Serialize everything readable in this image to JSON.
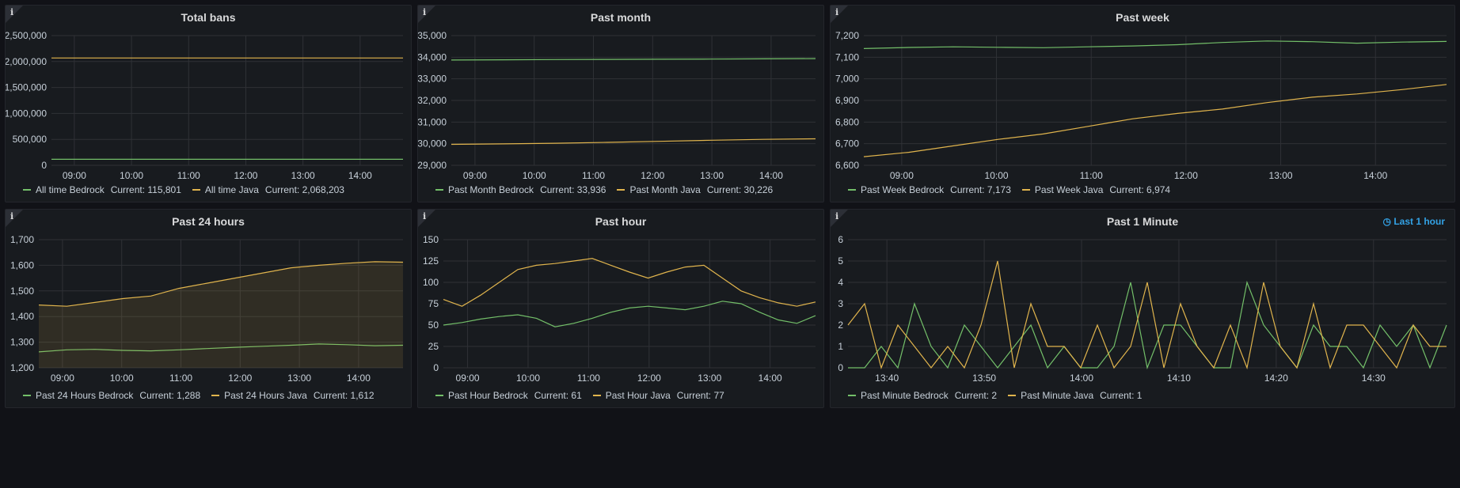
{
  "colors": {
    "green": "#73bf69",
    "yellow": "#fade2a",
    "orange": "#f2cc0c",
    "java": "#e0b44d",
    "bedrock": "#73bf69",
    "link": "#33a2e5"
  },
  "panels": [
    {
      "id": "total-bans",
      "title": "Total bans",
      "timeshift": "",
      "chart_data": {
        "type": "line",
        "x_ticks": [
          "09:00",
          "10:00",
          "11:00",
          "12:00",
          "13:00",
          "14:00"
        ],
        "y_ticks": [
          "0",
          "500,000",
          "1,000,000",
          "1,500,000",
          "2,000,000",
          "2,500,000"
        ],
        "ylim": [
          0,
          2500000
        ],
        "series": [
          {
            "name": "All time Bedrock",
            "color": "#73bf69",
            "values": [
              115801,
              115801,
              115801,
              115801,
              115801,
              115801,
              115801
            ]
          },
          {
            "name": "All time Java",
            "color": "#e0b44d",
            "values": [
              2068203,
              2068203,
              2068203,
              2068203,
              2068203,
              2068203,
              2068203
            ]
          }
        ]
      },
      "legend": [
        {
          "name": "All time Bedrock",
          "current": "Current: 115,801"
        },
        {
          "name": "All time Java",
          "current": "Current: 2,068,203"
        }
      ]
    },
    {
      "id": "past-month",
      "title": "Past month",
      "timeshift": "",
      "chart_data": {
        "type": "line",
        "x_ticks": [
          "09:00",
          "10:00",
          "11:00",
          "12:00",
          "13:00",
          "14:00"
        ],
        "y_ticks": [
          "29,000",
          "30,000",
          "31,000",
          "32,000",
          "33,000",
          "34,000",
          "35,000"
        ],
        "ylim": [
          29000,
          35000
        ],
        "series": [
          {
            "name": "Past Month Bedrock",
            "color": "#73bf69",
            "values": [
              33870,
              33880,
              33890,
              33900,
              33905,
              33915,
              33925,
              33936
            ]
          },
          {
            "name": "Past Month Java",
            "color": "#e0b44d",
            "values": [
              29970,
              29990,
              30020,
              30060,
              30110,
              30160,
              30200,
              30226
            ]
          }
        ]
      },
      "legend": [
        {
          "name": "Past Month Bedrock",
          "current": "Current: 33,936"
        },
        {
          "name": "Past Month Java",
          "current": "Current: 30,226"
        }
      ]
    },
    {
      "id": "past-week",
      "title": "Past week",
      "timeshift": "",
      "chart_data": {
        "type": "line",
        "x_ticks": [
          "09:00",
          "10:00",
          "11:00",
          "12:00",
          "13:00",
          "14:00"
        ],
        "y_ticks": [
          "6,600",
          "6,700",
          "6,800",
          "6,900",
          "7,000",
          "7,100",
          "7,200"
        ],
        "ylim": [
          6600,
          7200
        ],
        "series": [
          {
            "name": "Past Week Bedrock",
            "color": "#73bf69",
            "values": [
              7140,
              7145,
              7148,
              7146,
              7144,
              7148,
              7152,
              7158,
              7168,
              7175,
              7172,
              7165,
              7170,
              7173
            ]
          },
          {
            "name": "Past Week Java",
            "color": "#e0b44d",
            "values": [
              6640,
              6660,
              6690,
              6720,
              6745,
              6780,
              6815,
              6840,
              6860,
              6890,
              6915,
              6930,
              6950,
              6974
            ]
          }
        ]
      },
      "legend": [
        {
          "name": "Past Week Bedrock",
          "current": "Current: 7,173"
        },
        {
          "name": "Past Week Java",
          "current": "Current: 6,974"
        }
      ]
    },
    {
      "id": "past-24h",
      "title": "Past 24 hours",
      "timeshift": "",
      "chart_data": {
        "type": "area",
        "x_ticks": [
          "09:00",
          "10:00",
          "11:00",
          "12:00",
          "13:00",
          "14:00"
        ],
        "y_ticks": [
          "1,200",
          "1,300",
          "1,400",
          "1,500",
          "1,600",
          "1,700"
        ],
        "ylim": [
          1200,
          1700
        ],
        "series": [
          {
            "name": "Past 24 Hours Bedrock",
            "color": "#73bf69",
            "values": [
              1262,
              1270,
              1272,
              1268,
              1266,
              1270,
              1275,
              1280,
              1284,
              1288,
              1293,
              1290,
              1286,
              1288
            ]
          },
          {
            "name": "Past 24 Hours Java",
            "color": "#e0b44d",
            "fill": true,
            "values": [
              1445,
              1440,
              1455,
              1470,
              1480,
              1510,
              1530,
              1550,
              1570,
              1590,
              1600,
              1608,
              1614,
              1612
            ]
          }
        ]
      },
      "legend": [
        {
          "name": "Past 24 Hours Bedrock",
          "current": "Current: 1,288"
        },
        {
          "name": "Past 24 Hours Java",
          "current": "Current: 1,612"
        }
      ]
    },
    {
      "id": "past-hour",
      "title": "Past hour",
      "timeshift": "",
      "chart_data": {
        "type": "line",
        "x_ticks": [
          "09:00",
          "10:00",
          "11:00",
          "12:00",
          "13:00",
          "14:00"
        ],
        "y_ticks": [
          "0",
          "25",
          "50",
          "75",
          "100",
          "125",
          "150"
        ],
        "ylim": [
          0,
          150
        ],
        "series": [
          {
            "name": "Past Hour Bedrock",
            "color": "#73bf69",
            "values": [
              50,
              53,
              57,
              60,
              62,
              58,
              48,
              52,
              58,
              65,
              70,
              72,
              70,
              68,
              72,
              78,
              75,
              65,
              56,
              52,
              61
            ]
          },
          {
            "name": "Past Hour Java",
            "color": "#e0b44d",
            "values": [
              80,
              72,
              85,
              100,
              115,
              120,
              122,
              125,
              128,
              120,
              112,
              105,
              112,
              118,
              120,
              105,
              90,
              82,
              76,
              72,
              77
            ]
          }
        ]
      },
      "legend": [
        {
          "name": "Past Hour Bedrock",
          "current": "Current: 61"
        },
        {
          "name": "Past Hour Java",
          "current": "Current: 77"
        }
      ]
    },
    {
      "id": "past-1-minute",
      "title": "Past 1 Minute",
      "timeshift": "Last 1 hour",
      "chart_data": {
        "type": "line",
        "x_ticks": [
          "13:40",
          "13:50",
          "14:00",
          "14:10",
          "14:20",
          "14:30"
        ],
        "y_ticks": [
          "0",
          "1",
          "2",
          "3",
          "4",
          "5",
          "6"
        ],
        "ylim": [
          0,
          6
        ],
        "series": [
          {
            "name": "Past Minute Bedrock",
            "color": "#73bf69",
            "values": [
              0,
              0,
              1,
              0,
              3,
              1,
              0,
              2,
              1,
              0,
              1,
              2,
              0,
              1,
              0,
              0,
              1,
              4,
              0,
              2,
              2,
              1,
              0,
              0,
              4,
              2,
              1,
              0,
              2,
              1,
              1,
              0,
              2,
              1,
              2,
              0,
              2
            ]
          },
          {
            "name": "Past Minute Java",
            "color": "#e0b44d",
            "values": [
              2,
              3,
              0,
              2,
              1,
              0,
              1,
              0,
              2,
              5,
              0,
              3,
              1,
              1,
              0,
              2,
              0,
              1,
              4,
              0,
              3,
              1,
              0,
              2,
              0,
              4,
              1,
              0,
              3,
              0,
              2,
              2,
              1,
              0,
              2,
              1,
              1
            ]
          }
        ]
      },
      "legend": [
        {
          "name": "Past Minute Bedrock",
          "current": "Current: 2"
        },
        {
          "name": "Past Minute Java",
          "current": "Current: 1"
        }
      ]
    }
  ]
}
